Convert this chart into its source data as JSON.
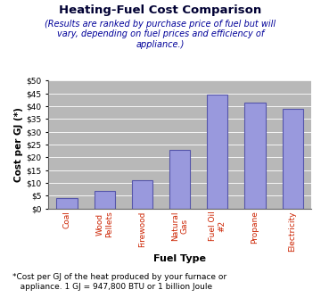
{
  "title": "Heating-Fuel Cost Comparison",
  "subtitle": "(Results are ranked by purchase price of fuel but will\nvary, depending on fuel prices and efficiency of\nappliance.)",
  "xlabel": "Fuel Type",
  "ylabel": "Cost per GJ (*)",
  "footnote": "*Cost per GJ of the heat produced by your furnace or\n   appliance. 1 GJ = 947,800 BTU or 1 billion Joule",
  "categories": [
    "Coal",
    "Wood\nPellets",
    "Firewood",
    "Natural\nGas",
    "Fuel Oil\n#2",
    "Propane",
    "Electricity"
  ],
  "values": [
    4.0,
    7.0,
    11.0,
    23.0,
    44.5,
    41.5,
    39.0
  ],
  "bar_color": "#9999dd",
  "bar_edgecolor": "#5555aa",
  "plot_bg_color": "#b8b8b8",
  "title_color": "#000033",
  "subtitle_color": "#000099",
  "tick_label_color": "#cc2200",
  "ylim": [
    0,
    50
  ],
  "yticks": [
    0,
    5,
    10,
    15,
    20,
    25,
    30,
    35,
    40,
    45,
    50
  ]
}
